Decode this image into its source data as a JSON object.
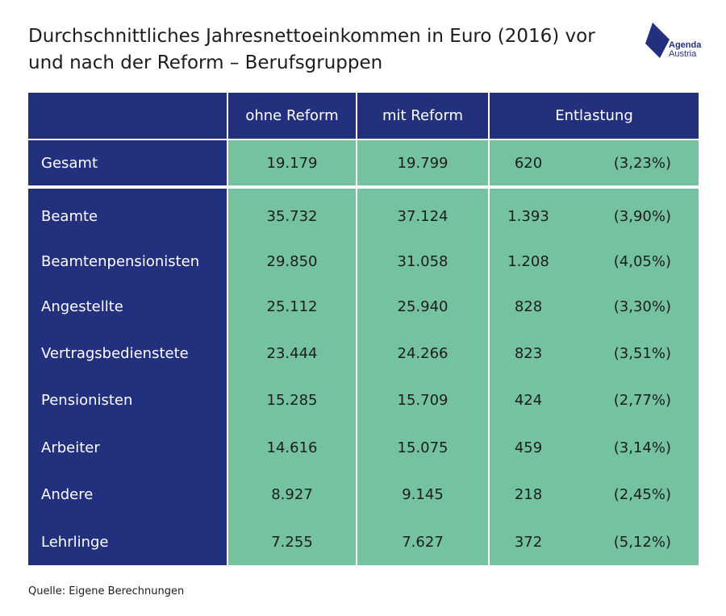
{
  "title": {
    "line1": "Durchschnittliches Jahresnettoeinkommen in Euro (2016) vor",
    "line2": "und nach der Reform – Berufsgruppen"
  },
  "logo": {
    "line1": "Agenda",
    "line2": "Austria",
    "color": "#23307e"
  },
  "colors": {
    "navy": "#23307e",
    "green": "#75c2a1"
  },
  "chart_data": {
    "type": "table",
    "title": "Durchschnittliches Jahresnettoeinkommen in Euro (2016) vor und nach der Reform – Berufsgruppen",
    "columns": [
      "",
      "ohne Reform",
      "mit Reform",
      "Entlastung"
    ],
    "total": {
      "label": "Gesamt",
      "ohne": "19.179",
      "mit": "19.799",
      "entlastung": "620",
      "pct": "(3,23%)"
    },
    "rows": [
      {
        "label": "Beamte",
        "ohne": "35.732",
        "mit": "37.124",
        "entlastung": "1.393",
        "pct": "(3,90%)"
      },
      {
        "label": "Beamtenpensionisten",
        "ohne": "29.850",
        "mit": "31.058",
        "entlastung": "1.208",
        "pct": "(4,05%)"
      },
      {
        "label": "Angestellte",
        "ohne": "25.112",
        "mit": "25.940",
        "entlastung": "828",
        "pct": "(3,30%)"
      },
      {
        "label": "Vertragsbedienstete",
        "ohne": "23.444",
        "mit": "24.266",
        "entlastung": "823",
        "pct": "(3,51%)"
      },
      {
        "label": "Pensionisten",
        "ohne": "15.285",
        "mit": "15.709",
        "entlastung": "424",
        "pct": "(2,77%)"
      },
      {
        "label": "Arbeiter",
        "ohne": "14.616",
        "mit": "15.075",
        "entlastung": "459",
        "pct": "(3,14%)"
      },
      {
        "label": "Andere",
        "ohne": "8.927",
        "mit": "9.145",
        "entlastung": "218",
        "pct": "(2,45%)"
      },
      {
        "label": "Lehrlinge",
        "ohne": "7.255",
        "mit": "7.627",
        "entlastung": "372",
        "pct": "(5,12%)"
      }
    ]
  },
  "source": "Quelle: Eigene Berechnungen"
}
